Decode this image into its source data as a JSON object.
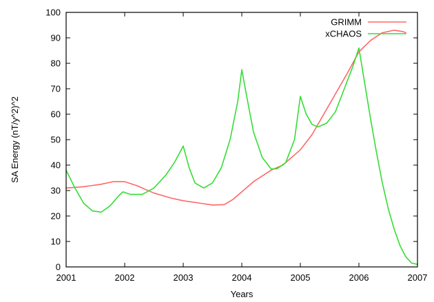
{
  "chart_data": {
    "type": "line",
    "title": "",
    "xlabel": "Years",
    "ylabel": "SA Energy (nT/y^2)^2",
    "xlim": [
      2001,
      2007
    ],
    "ylim": [
      0,
      100
    ],
    "xticks": [
      2001,
      2002,
      2003,
      2004,
      2005,
      2006,
      2007
    ],
    "yticks": [
      0,
      10,
      20,
      30,
      40,
      50,
      60,
      70,
      80,
      90,
      100
    ],
    "legend_position": "top-right",
    "grid": false,
    "series": [
      {
        "name": "GRIMM",
        "color": "#ff6666",
        "points": [
          [
            2001.0,
            31
          ],
          [
            2001.3,
            31.5
          ],
          [
            2001.6,
            32.5
          ],
          [
            2001.8,
            33.5
          ],
          [
            2002.0,
            33.5
          ],
          [
            2002.2,
            32
          ],
          [
            2002.5,
            29
          ],
          [
            2002.8,
            27
          ],
          [
            2003.0,
            26
          ],
          [
            2003.3,
            25
          ],
          [
            2003.5,
            24.3
          ],
          [
            2003.7,
            24.5
          ],
          [
            2003.85,
            26.5
          ],
          [
            2004.0,
            29.5
          ],
          [
            2004.2,
            33.5
          ],
          [
            2004.5,
            38
          ],
          [
            2004.7,
            40
          ],
          [
            2004.9,
            44
          ],
          [
            2005.0,
            46
          ],
          [
            2005.2,
            52
          ],
          [
            2005.4,
            60
          ],
          [
            2005.6,
            68
          ],
          [
            2005.8,
            76
          ],
          [
            2006.0,
            84.5
          ],
          [
            2006.2,
            89
          ],
          [
            2006.4,
            92
          ],
          [
            2006.6,
            93
          ],
          [
            2006.75,
            92.5
          ],
          [
            2006.8,
            92
          ]
        ]
      },
      {
        "name": "xCHAOS",
        "color": "#33dd33",
        "points": [
          [
            2001.0,
            38
          ],
          [
            2001.15,
            31
          ],
          [
            2001.3,
            25
          ],
          [
            2001.45,
            22
          ],
          [
            2001.6,
            21.5
          ],
          [
            2001.75,
            24
          ],
          [
            2001.9,
            28
          ],
          [
            2001.97,
            29.5
          ],
          [
            2002.1,
            28.5
          ],
          [
            2002.3,
            28.5
          ],
          [
            2002.5,
            31
          ],
          [
            2002.7,
            36
          ],
          [
            2002.85,
            41
          ],
          [
            2003.0,
            47.5
          ],
          [
            2003.1,
            39
          ],
          [
            2003.2,
            33
          ],
          [
            2003.35,
            31
          ],
          [
            2003.5,
            33
          ],
          [
            2003.65,
            39
          ],
          [
            2003.8,
            50
          ],
          [
            2003.93,
            65
          ],
          [
            2004.0,
            77.5
          ],
          [
            2004.1,
            65
          ],
          [
            2004.2,
            53
          ],
          [
            2004.35,
            43
          ],
          [
            2004.5,
            38.5
          ],
          [
            2004.6,
            38.5
          ],
          [
            2004.75,
            41
          ],
          [
            2004.9,
            50
          ],
          [
            2005.0,
            67
          ],
          [
            2005.1,
            60
          ],
          [
            2005.2,
            56
          ],
          [
            2005.3,
            55
          ],
          [
            2005.45,
            56.5
          ],
          [
            2005.6,
            61
          ],
          [
            2005.75,
            70
          ],
          [
            2005.9,
            79
          ],
          [
            2006.0,
            86
          ],
          [
            2006.1,
            72
          ],
          [
            2006.2,
            58
          ],
          [
            2006.3,
            45
          ],
          [
            2006.4,
            33
          ],
          [
            2006.5,
            23
          ],
          [
            2006.6,
            15
          ],
          [
            2006.7,
            8.5
          ],
          [
            2006.8,
            4
          ],
          [
            2006.9,
            1.5
          ],
          [
            2007.0,
            1
          ]
        ]
      }
    ]
  }
}
